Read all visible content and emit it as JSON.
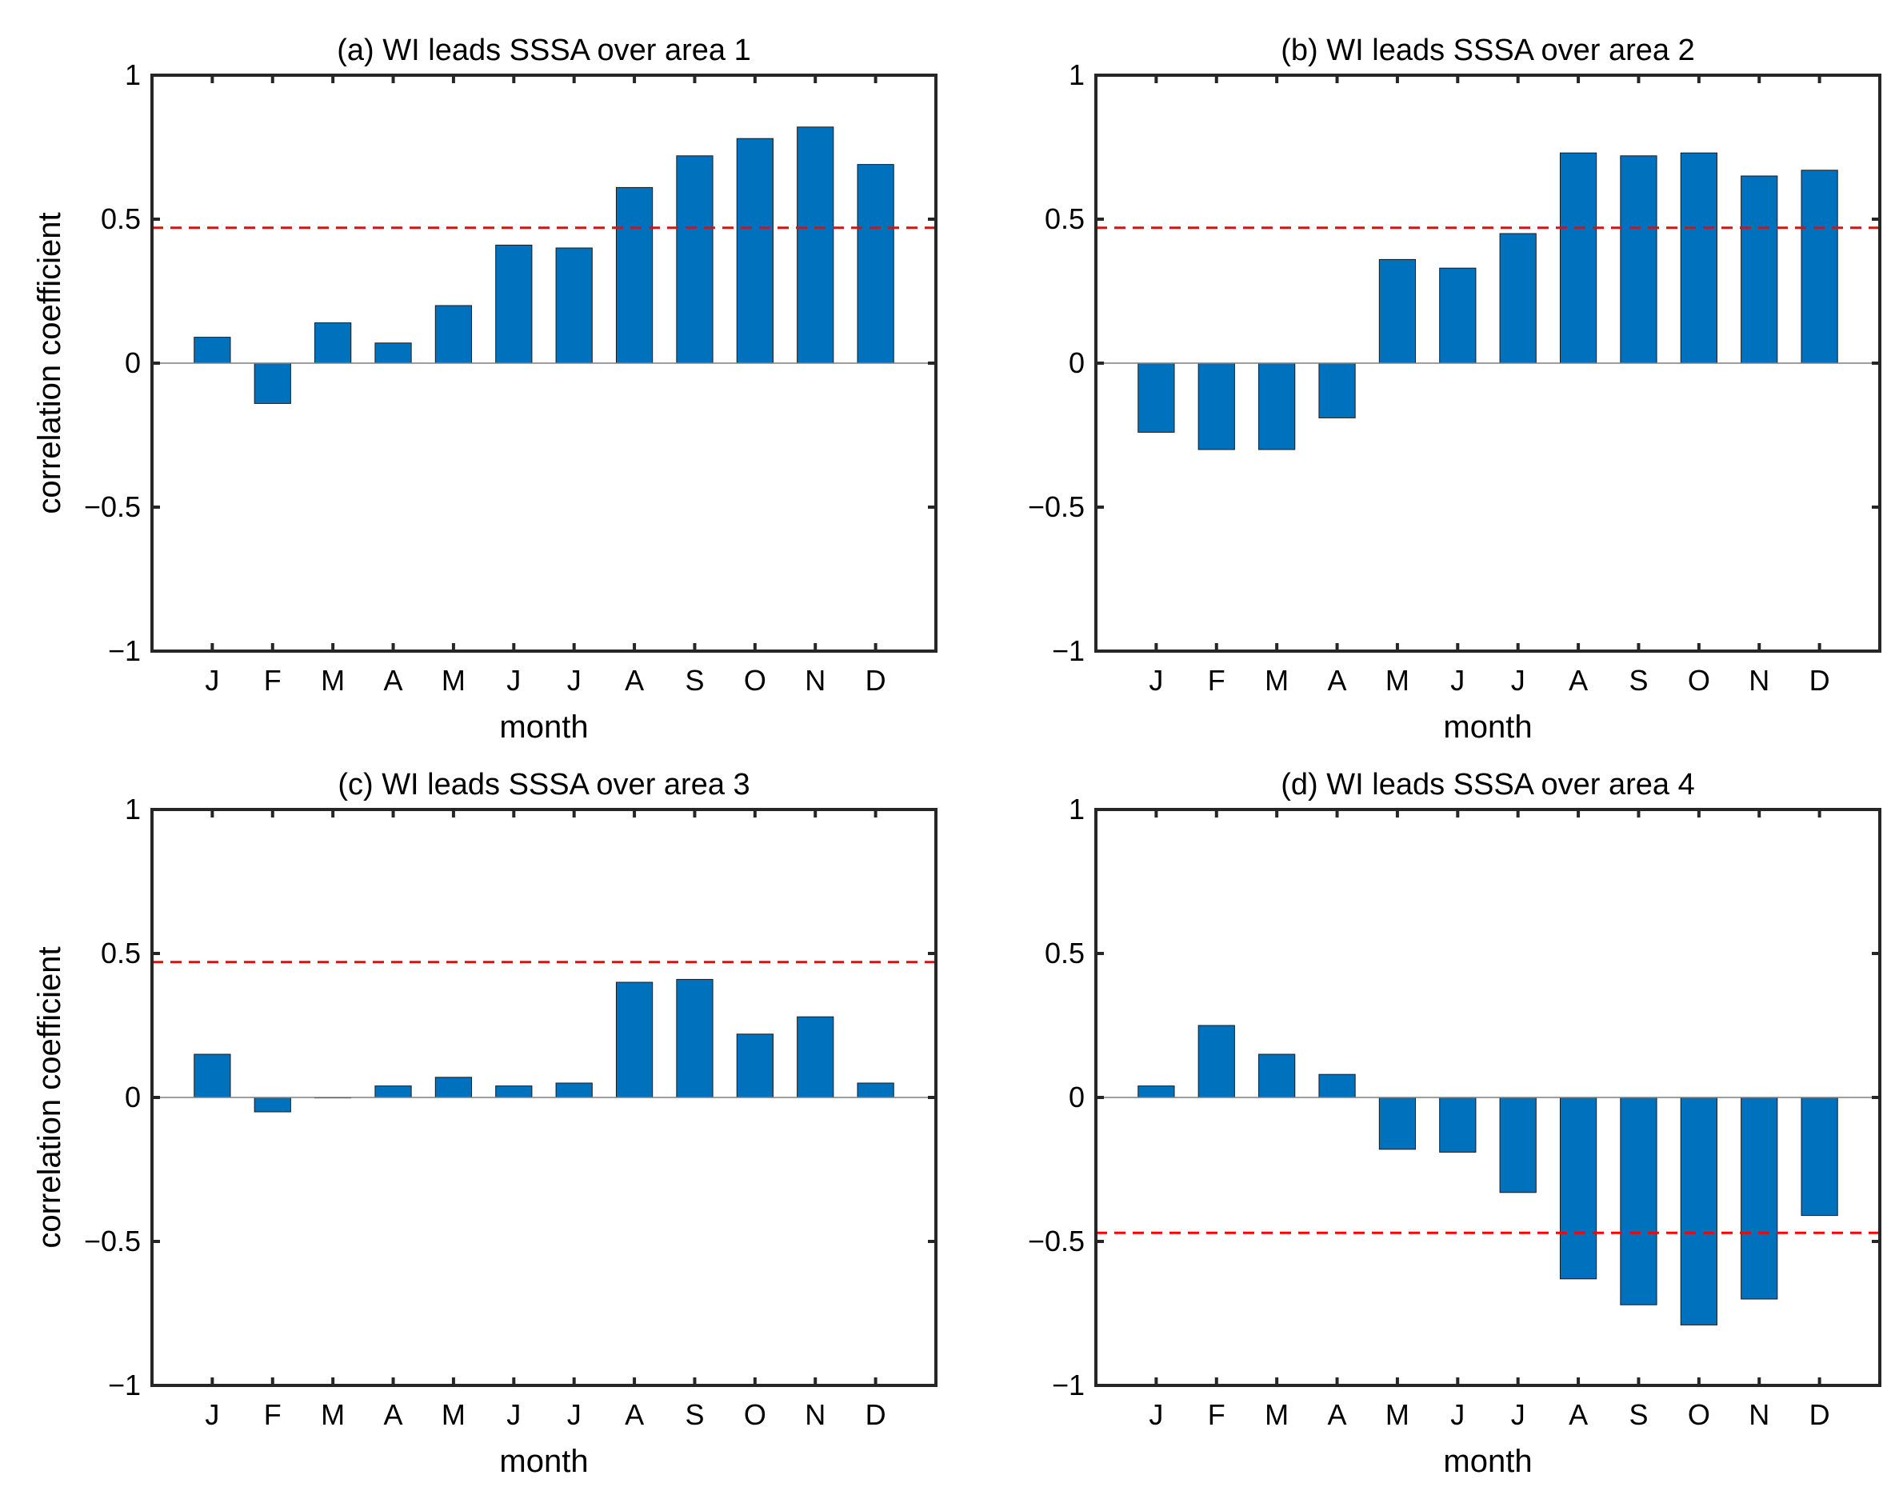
{
  "chart_data": [
    {
      "type": "bar",
      "title": "(a) WI leads SSSA over area 1",
      "xlabel": "month",
      "ylabel": "correlation coefficient",
      "categories": [
        "J",
        "F",
        "M",
        "A",
        "M",
        "J",
        "J",
        "A",
        "S",
        "O",
        "N",
        "D"
      ],
      "values": [
        0.09,
        -0.14,
        0.14,
        0.07,
        0.2,
        0.41,
        0.4,
        0.61,
        0.72,
        0.78,
        0.82,
        0.69
      ],
      "ylim": [
        -1,
        1
      ],
      "yticks": [
        -1,
        -0.5,
        0,
        0.5,
        1
      ],
      "ytick_labels": [
        "−1",
        "−0.5",
        "0",
        "0.5",
        "1"
      ],
      "threshold_lines": [
        0.47
      ],
      "bar_color": "#0072BD",
      "threshold_color": "#FF0000"
    },
    {
      "type": "bar",
      "title": "(b) WI leads SSSA over area 2",
      "xlabel": "month",
      "ylabel": "",
      "categories": [
        "J",
        "F",
        "M",
        "A",
        "M",
        "J",
        "J",
        "A",
        "S",
        "O",
        "N",
        "D"
      ],
      "values": [
        -0.24,
        -0.3,
        -0.3,
        -0.19,
        0.36,
        0.33,
        0.45,
        0.73,
        0.72,
        0.73,
        0.65,
        0.67
      ],
      "ylim": [
        -1,
        1
      ],
      "yticks": [
        -1,
        -0.5,
        0,
        0.5,
        1
      ],
      "ytick_labels": [
        "−1",
        "−0.5",
        "0",
        "0.5",
        "1"
      ],
      "threshold_lines": [
        0.47
      ],
      "bar_color": "#0072BD",
      "threshold_color": "#FF0000"
    },
    {
      "type": "bar",
      "title": "(c) WI leads SSSA over area 3",
      "xlabel": "month",
      "ylabel": "correlation coefficient",
      "categories": [
        "J",
        "F",
        "M",
        "A",
        "M",
        "J",
        "J",
        "A",
        "S",
        "O",
        "N",
        "D"
      ],
      "values": [
        0.15,
        -0.05,
        0.0,
        0.04,
        0.07,
        0.04,
        0.05,
        0.4,
        0.41,
        0.22,
        0.28,
        0.05
      ],
      "ylim": [
        -1,
        1
      ],
      "yticks": [
        -1,
        -0.5,
        0,
        0.5,
        1
      ],
      "ytick_labels": [
        "−1",
        "−0.5",
        "0",
        "0.5",
        "1"
      ],
      "threshold_lines": [
        0.47
      ],
      "bar_color": "#0072BD",
      "threshold_color": "#FF0000"
    },
    {
      "type": "bar",
      "title": "(d) WI leads SSSA over area 4",
      "xlabel": "month",
      "ylabel": "",
      "categories": [
        "J",
        "F",
        "M",
        "A",
        "M",
        "J",
        "J",
        "A",
        "S",
        "O",
        "N",
        "D"
      ],
      "values": [
        0.04,
        0.25,
        0.15,
        0.08,
        -0.18,
        -0.19,
        -0.33,
        -0.63,
        -0.72,
        -0.79,
        -0.7,
        -0.41
      ],
      "ylim": [
        -1,
        1
      ],
      "yticks": [
        -1,
        -0.5,
        0,
        0.5,
        1
      ],
      "ytick_labels": [
        "−1",
        "−0.5",
        "0",
        "0.5",
        "1"
      ],
      "threshold_lines": [
        -0.47
      ],
      "bar_color": "#0072BD",
      "threshold_color": "#FF0000"
    }
  ]
}
